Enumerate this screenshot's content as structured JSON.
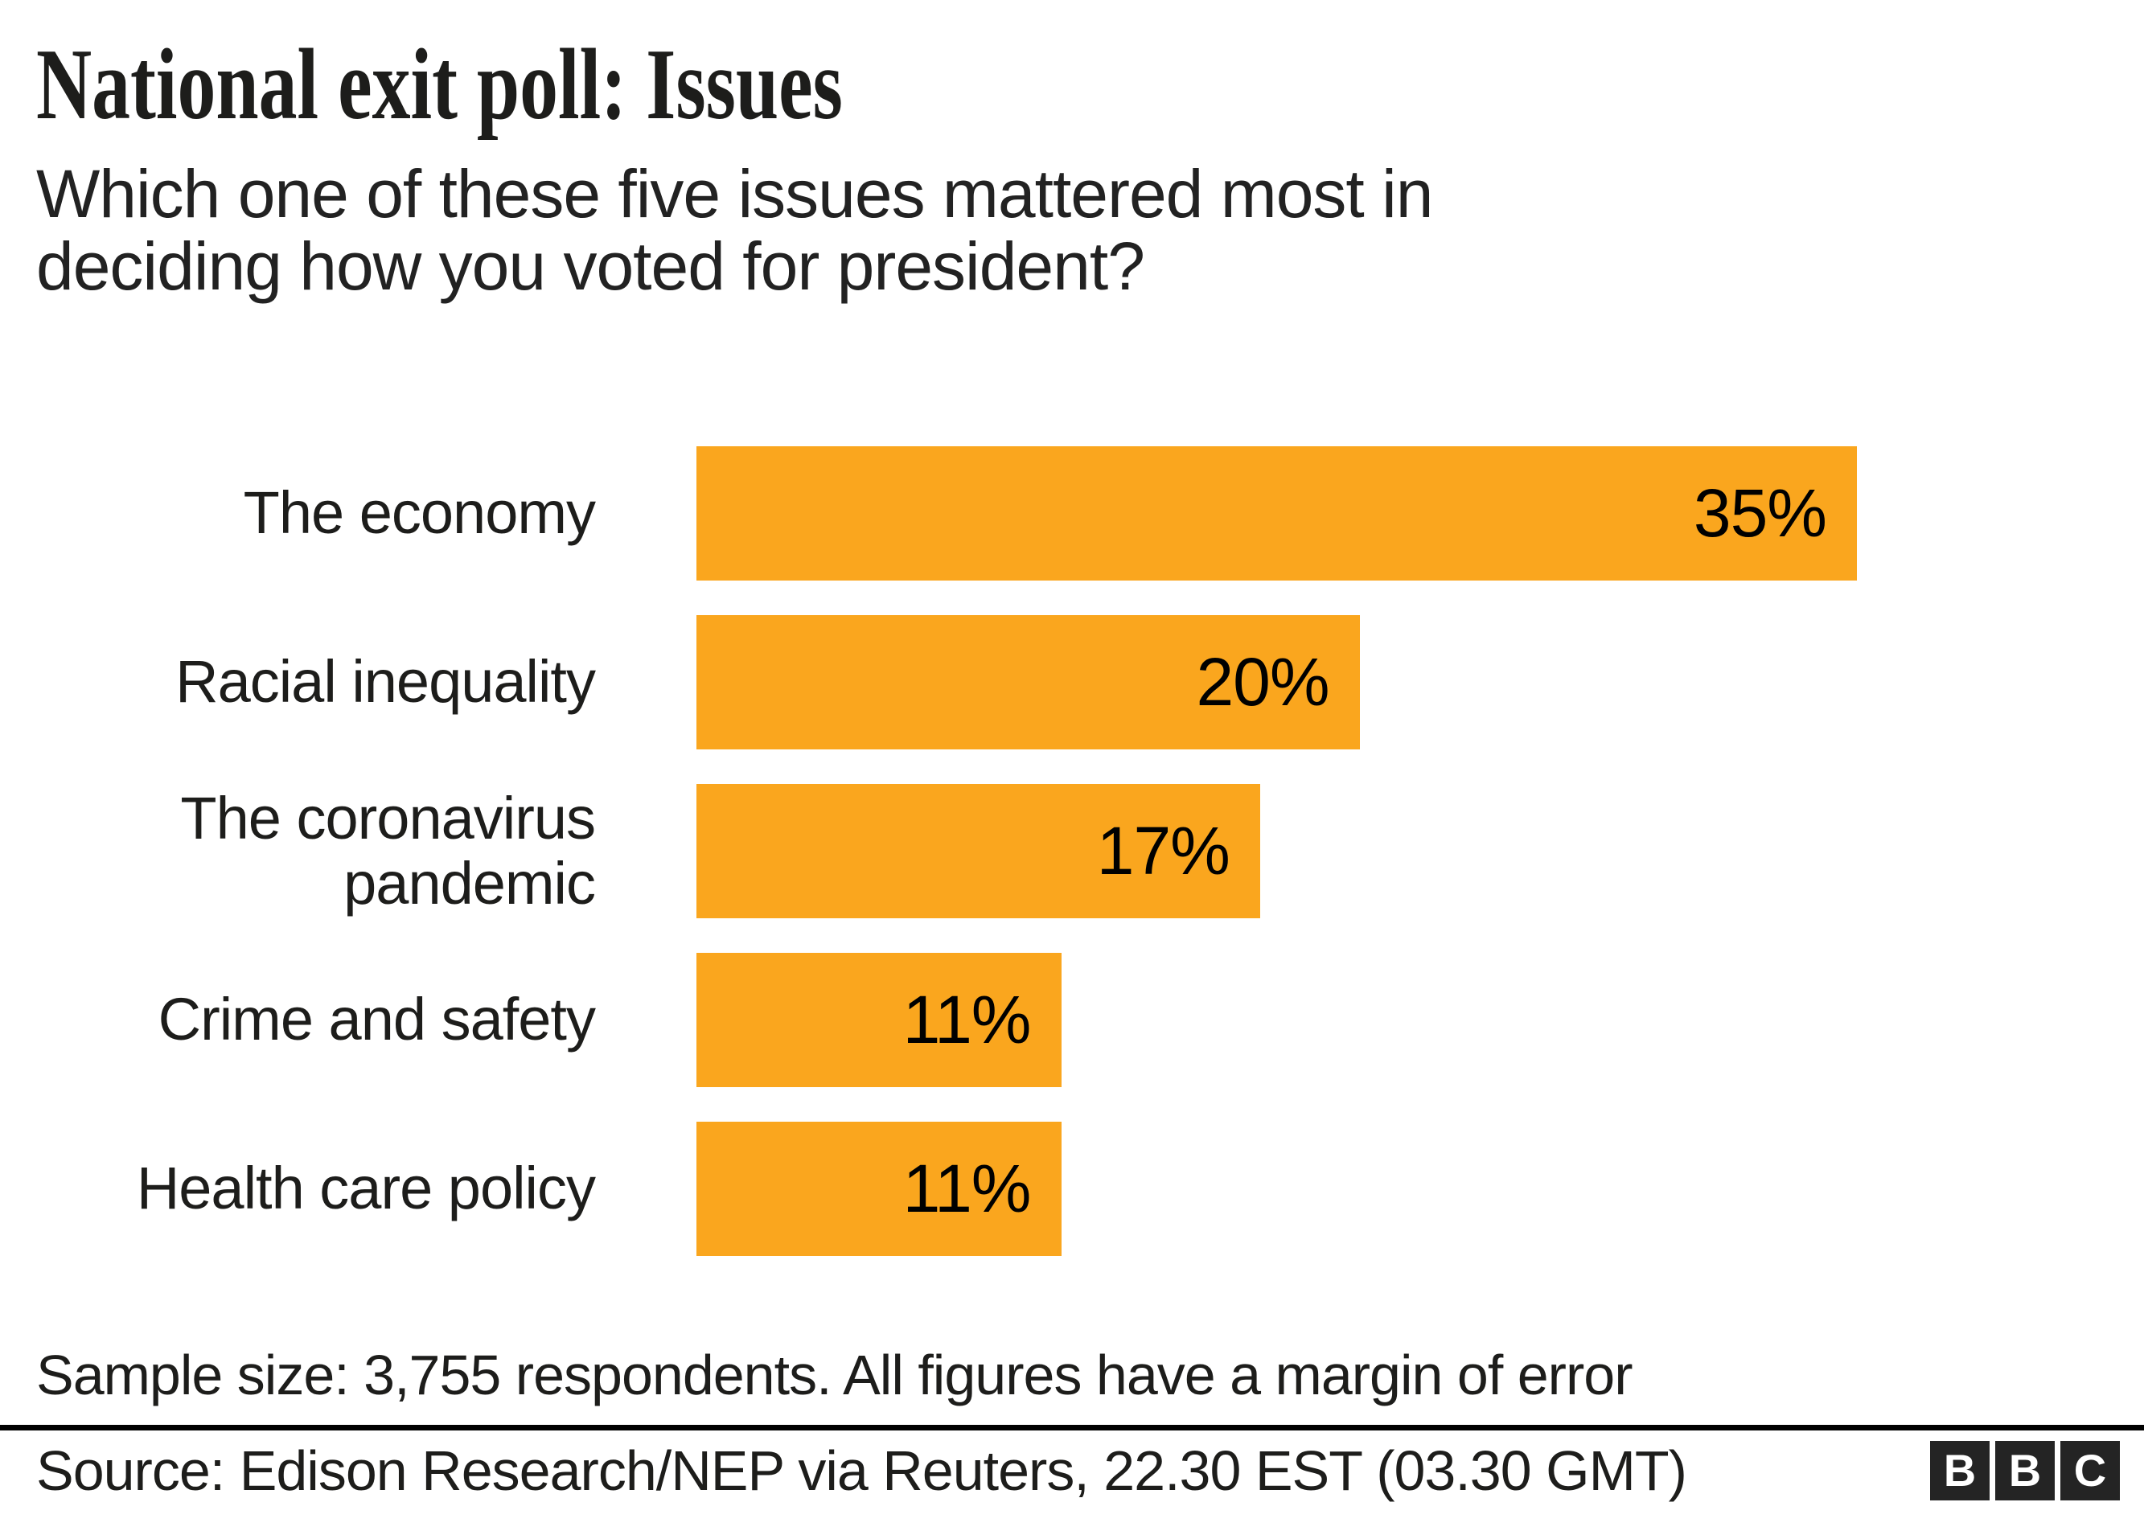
{
  "title": "National exit poll: Issues",
  "subtitle_lines": [
    "Which one of these five issues mattered most in",
    "deciding how you voted for president?"
  ],
  "chart_data": {
    "type": "bar",
    "orientation": "horizontal",
    "categories": [
      "The economy",
      "Racial inequality",
      "The coronavirus pandemic",
      "Crime and safety",
      "Health care policy"
    ],
    "values": [
      35,
      20,
      17,
      11,
      11
    ],
    "value_labels": [
      "35%",
      "20%",
      "17%",
      "11%",
      "11%"
    ],
    "xlim": [
      0,
      35
    ],
    "grid": false,
    "legend": false,
    "bar_color": "#FAA61E",
    "value_label_color": "#000000",
    "value_label_position": "inside-right"
  },
  "footnote": "Sample size: 3,755 respondents. All figures have a margin of error",
  "source": "Source: Edison Research/NEP via Reuters, 22.30 EST (03.30 GMT)",
  "logo": {
    "letters": [
      "B",
      "B",
      "C"
    ]
  },
  "colors": {
    "accent": "#FAA61E",
    "title_text": "#1d1d1b",
    "body_text": "#222222",
    "rule": "#000000",
    "logo_bg": "#242424",
    "background": "#ffffff"
  }
}
